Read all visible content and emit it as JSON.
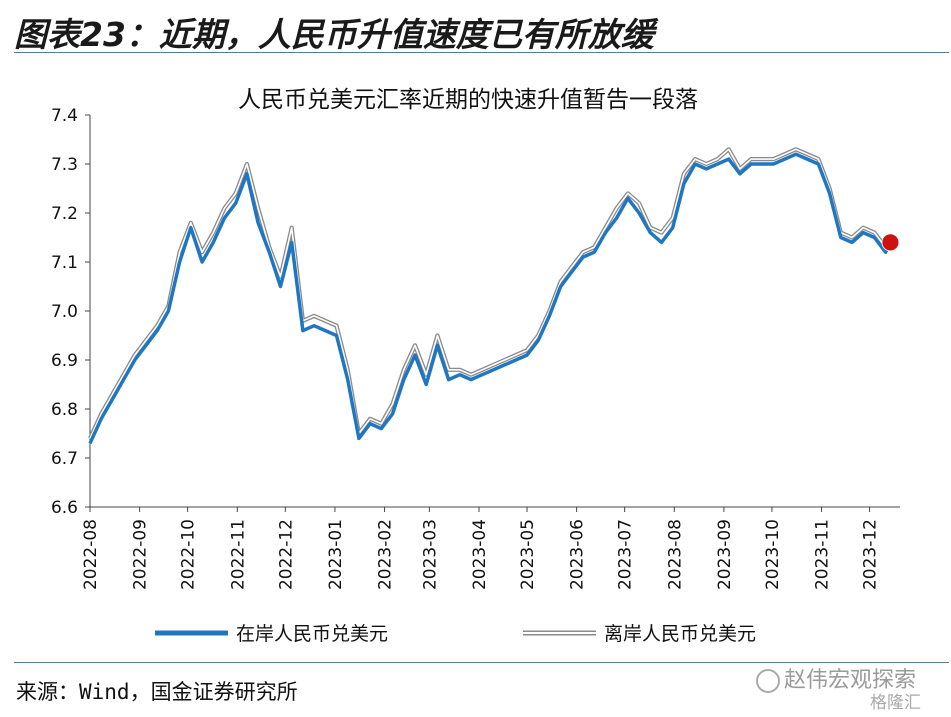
{
  "figure_title": "图表23：近期，人民币升值速度已有所放缓",
  "source_text": "来源：Wind，国金证券研究所",
  "watermark_text": "赵伟宏观探索",
  "watermark_sub": "格隆汇",
  "colors": {
    "onshore": "#1f77c4",
    "offshore": "#b7b7b7",
    "marker": "#cc1111",
    "rule": "#5a7a94"
  },
  "chart_data": {
    "type": "line",
    "title": "人民币兑美元汇率近期的快速升值暂告一段落",
    "xlabel": "",
    "ylabel": "",
    "ylim": [
      6.6,
      7.4
    ],
    "y_ticks": [
      "6.6",
      "6.7",
      "6.8",
      "6.9",
      "7.0",
      "7.1",
      "7.2",
      "7.3",
      "7.4"
    ],
    "x_ticks": [
      "2022-08",
      "2022-09",
      "2022-10",
      "2022-11",
      "2022-12",
      "2023-01",
      "2023-02",
      "2023-03",
      "2023-04",
      "2023-05",
      "2023-06",
      "2023-07",
      "2023-08",
      "2023-09",
      "2023-10",
      "2023-11",
      "2023-12"
    ],
    "x": [
      "2022-08-01",
      "2022-08-08",
      "2022-08-15",
      "2022-08-22",
      "2022-08-29",
      "2022-09-05",
      "2022-09-12",
      "2022-09-19",
      "2022-09-26",
      "2022-10-03",
      "2022-10-10",
      "2022-10-17",
      "2022-10-24",
      "2022-10-31",
      "2022-11-07",
      "2022-11-14",
      "2022-11-21",
      "2022-11-28",
      "2022-12-05",
      "2022-12-12",
      "2022-12-19",
      "2022-12-26",
      "2023-01-02",
      "2023-01-09",
      "2023-01-16",
      "2023-01-23",
      "2023-01-30",
      "2023-02-06",
      "2023-02-13",
      "2023-02-20",
      "2023-02-27",
      "2023-03-06",
      "2023-03-13",
      "2023-03-20",
      "2023-03-27",
      "2023-04-03",
      "2023-04-10",
      "2023-04-17",
      "2023-04-24",
      "2023-05-01",
      "2023-05-08",
      "2023-05-15",
      "2023-05-22",
      "2023-05-29",
      "2023-06-05",
      "2023-06-12",
      "2023-06-19",
      "2023-06-26",
      "2023-07-03",
      "2023-07-10",
      "2023-07-17",
      "2023-07-24",
      "2023-07-31",
      "2023-08-07",
      "2023-08-14",
      "2023-08-21",
      "2023-08-28",
      "2023-09-04",
      "2023-09-11",
      "2023-09-18",
      "2023-09-25",
      "2023-10-02",
      "2023-10-09",
      "2023-10-16",
      "2023-10-23",
      "2023-10-30",
      "2023-11-06",
      "2023-11-13",
      "2023-11-20",
      "2023-11-27",
      "2023-12-04",
      "2023-12-11",
      "2023-12-14"
    ],
    "series": [
      {
        "name": "在岸人民币兑美元",
        "values": [
          6.73,
          6.78,
          6.82,
          6.86,
          6.9,
          6.93,
          6.96,
          7.0,
          7.1,
          7.17,
          7.1,
          7.14,
          7.19,
          7.22,
          7.28,
          7.18,
          7.12,
          7.05,
          7.14,
          6.96,
          6.97,
          6.96,
          6.95,
          6.86,
          6.74,
          6.77,
          6.76,
          6.79,
          6.86,
          6.91,
          6.85,
          6.93,
          6.86,
          6.87,
          6.86,
          6.87,
          6.88,
          6.89,
          6.9,
          6.91,
          6.94,
          6.99,
          7.05,
          7.08,
          7.11,
          7.12,
          7.16,
          7.19,
          7.23,
          7.2,
          7.16,
          7.14,
          7.17,
          7.26,
          7.3,
          7.29,
          7.3,
          7.31,
          7.28,
          7.3,
          7.3,
          7.3,
          7.31,
          7.32,
          7.31,
          7.3,
          7.24,
          7.15,
          7.14,
          7.16,
          7.15,
          7.12,
          7.14
        ]
      },
      {
        "name": "离岸人民币兑美元",
        "values": [
          6.74,
          6.79,
          6.83,
          6.87,
          6.91,
          6.94,
          6.97,
          7.01,
          7.12,
          7.18,
          7.12,
          7.16,
          7.21,
          7.24,
          7.3,
          7.21,
          7.13,
          7.07,
          7.17,
          6.98,
          6.99,
          6.98,
          6.97,
          6.88,
          6.75,
          6.78,
          6.77,
          6.81,
          6.88,
          6.93,
          6.87,
          6.95,
          6.88,
          6.88,
          6.87,
          6.88,
          6.89,
          6.9,
          6.91,
          6.92,
          6.95,
          7.0,
          7.06,
          7.09,
          7.12,
          7.13,
          7.17,
          7.21,
          7.24,
          7.22,
          7.17,
          7.16,
          7.19,
          7.28,
          7.31,
          7.3,
          7.31,
          7.33,
          7.29,
          7.31,
          7.31,
          7.31,
          7.32,
          7.33,
          7.32,
          7.31,
          7.25,
          7.16,
          7.15,
          7.17,
          7.16,
          7.13,
          7.15
        ]
      }
    ],
    "marker_point": {
      "x": "2023-12-14",
      "y": 7.14
    },
    "legend_position": "bottom",
    "grid": false
  }
}
